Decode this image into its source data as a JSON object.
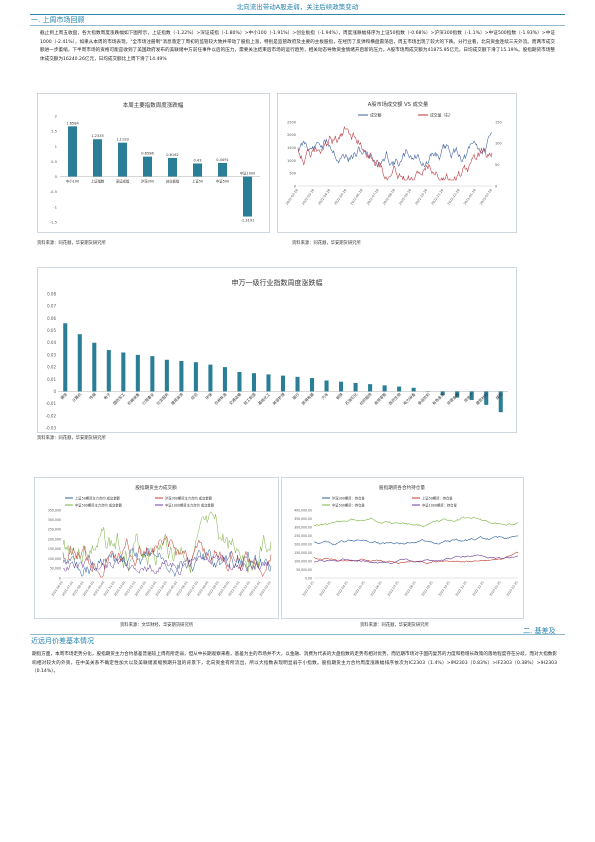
{
  "header": {
    "title": "北向流出带动A股走弱，关注后续政策变动"
  },
  "section1": {
    "title": "一. 上周市场回顾",
    "para_before": "截止到上周五收盘，各大指数周度涨跌幅如下图所示，",
    "para_after": "周度涨跌幅排序为上证50指数（-0.68%）>沪深300指数（-1.1%）>中证500指数（-1.93%）>中证1000（-2.41%），如果从本周的市场表现，\"全市场注册制\"消息落定了周初的监管较大致并带动了股指上涨，特别是监管政府及主要的主板股指，在经历了反弹和横盘震荡后，周五市场出现了较大的下跌。分行业看，北向资金连续三天外流。而两市成交额进一步萎缩，下半周市场的资格可能是收到了美国政府发布的美联储中方前任事件以后的压力，需要关注结束后市场的运行趋势，相关动态导致资金情绪开启新的压力。A股市场周成交额为41875.95亿元，日均成交额下滑了15.19%。股指期货市场整体成交额为16240.26亿元，日均成交额比上周下滑了14.49%",
    "idx_items": [
      "上证指数（-1.22%）",
      "深证成指（-1.80%）",
      "中小100（-1.91%）",
      "创业板指（-1.94%）"
    ]
  },
  "chart1": {
    "title": "本周主要指数周度涨跌幅",
    "source": "资料来源：同花顺，华安期货研究所"
  },
  "chart2": {
    "title": "A股市场成交额 VS 成交量",
    "legend": [
      "成交额",
      "成交量（右）"
    ],
    "source": "资料来源：同花顺，华安期货研究所"
  },
  "chart3": {
    "title": "申万一级行业指数周度涨跌幅",
    "source": "资料来源：同花顺，华安期货研究所"
  },
  "chart4": {
    "title": "股指期货主力成交额",
    "legend": [
      "上证50期货主力合约 成交金额",
      "沪深300期货主力合约 成交金额",
      "中证500期货主力合约 成交金额",
      "中证1000期货主力合约 成交金额"
    ],
    "source": "资料来源：文华财经，华安期货研究所"
  },
  "chart5": {
    "title": "股指期货各合约持仓量",
    "legend": [
      "沪深300期货：持仓量",
      "上证50期货：持仓量",
      "中证500期货：持仓量",
      "中证1000期货：持仓量"
    ],
    "source": "资料来源：同花顺，华安期货研究所"
  },
  "section2": {
    "title_right": "二. 基差及",
    "title_left": "近远月价差基本情况",
    "para": "期指方面，本周市场走势分化，股指期货主力合约基差普遍较上周有所走弱，但从中长期观察来看，基差为主的市场并不大，以金融、消费为代表的大盘指数的走势有相对优势，而近期市场对于国内复苏的力度和稳增长政策的落地程度存在分歧，而对大指数影响相对较大的外资，在中美关系不确定性加大以及美联储紧缩预期升温的背景下，北向资金有所流出，所以大指数表现明显弱于小指数。股指期货主力合约周度涨跌幅排序依次为IC2303（1.4%）>IM2303（0.83%）>IF2303（0.38%）>IH2303（0.14%）。"
  },
  "chart_data": [
    {
      "type": "bar",
      "title": "本周主要指数周度涨跌幅",
      "categories": [
        "中小100",
        "上证指数",
        "深证成指",
        "沪深300",
        "创业板指",
        "上证50",
        "中证500",
        "中证1000"
      ],
      "values": [
        1.6584,
        1.2335,
        1.1193,
        0.6586,
        0.6162,
        0.4322,
        0.4491,
        -1.3191
      ],
      "value_labels": [
        "1.6584",
        "1.2335",
        "1.1193",
        "0.6586",
        "0.6162",
        "0.43",
        "0.4491",
        "-1.3191"
      ],
      "ylim": [
        -1.5,
        2.0
      ],
      "yticks": [
        -1.5,
        -1,
        -0.5,
        0,
        0.5,
        1,
        1.5,
        2
      ]
    },
    {
      "type": "line",
      "title": "A股市场成交额 VS 成交量",
      "yticks_left": [
        "0",
        "500",
        "1000",
        "1500",
        "2000",
        "2500"
      ],
      "yticks_right": [
        "0",
        "50",
        "100",
        "150"
      ],
      "x_labels": [
        "2022-02-18",
        "2022-03-18",
        "2022-04-18",
        "2022-05-18",
        "2022-06-18",
        "2022-07-18",
        "2022-08-18",
        "2022-09-18",
        "2022-10-18",
        "2022-11-18",
        "2022-12-18",
        "2023-01-18",
        "2023-02-18"
      ]
    },
    {
      "type": "bar",
      "title": "申万一级行业指数周度涨跌幅",
      "categories": [
        "通信",
        "计算机",
        "传媒",
        "电子",
        "国防军工",
        "机械设备",
        "公用事业",
        "社会服务",
        "建筑装饰",
        "综合",
        "环保",
        "农林牧渔",
        "交通运输",
        "轻工制造",
        "基础化工",
        "美容护理",
        "银行",
        "家用电器",
        "汽车",
        "钢铁",
        "石油石化",
        "纺织服饰",
        "商贸零售",
        "医药生物",
        "电力设备",
        "食品饮料",
        "有色金属",
        "非银金融",
        "房地产",
        "建筑材料",
        "煤炭"
      ],
      "values": [
        0.056,
        0.047,
        0.04,
        0.034,
        0.032,
        0.03,
        0.029,
        0.026,
        0.025,
        0.024,
        0.022,
        0.02,
        0.016,
        0.015,
        0.014,
        0.013,
        0.012,
        0.011,
        0.009,
        0.008,
        0.007,
        0.006,
        0.005,
        0.004,
        0.003,
        0.0,
        -0.003,
        -0.005,
        -0.007,
        -0.011,
        -0.017
      ],
      "ylim": [
        -0.03,
        0.08
      ],
      "yticks": [
        "0.08",
        "0.07",
        "0.06",
        "0.05",
        "0.04",
        "0.03",
        "0.02",
        "0.01",
        "0",
        "-0.01",
        "-0.02",
        "-0.03"
      ]
    },
    {
      "type": "line",
      "title": "股指期货主力成交额",
      "yticks": [
        "0",
        "50,000",
        "100,000",
        "150,000",
        "200,000",
        "250,000",
        "300,000",
        "350,000"
      ],
      "x_labels": [
        "2021-06-01",
        "2021-07-01",
        "2021-08-01",
        "2021-09-01",
        "2021-10-01",
        "2021-11-01",
        "2021-12-01",
        "2022-01-01",
        "2022-02-01",
        "2022-03-01",
        "2022-04-01",
        "2022-05-01",
        "2022-06-01",
        "2022-07-01",
        "2022-08-01",
        "2022-09-01",
        "2022-10-01",
        "2022-11-01",
        "2022-12-01",
        "2023-01-01",
        "2023-02-01"
      ]
    },
    {
      "type": "line",
      "title": "股指期货各合约持仓量",
      "yticks": [
        "0.00",
        "50,000.00",
        "100,000.00",
        "150,000.00",
        "200,000.00",
        "250,000.00",
        "300,000.00",
        "350,000.00",
        "400,000.00"
      ],
      "x_labels": [
        "2022-02-25",
        "2022-03-25",
        "2022-04-25",
        "2022-05-25",
        "2022-06-25",
        "2022-07-25",
        "2022-08-25",
        "2022-09-25",
        "2022-10-25",
        "2022-11-25",
        "2022-12-25",
        "2023-01-25",
        "2023-02-25"
      ]
    }
  ]
}
